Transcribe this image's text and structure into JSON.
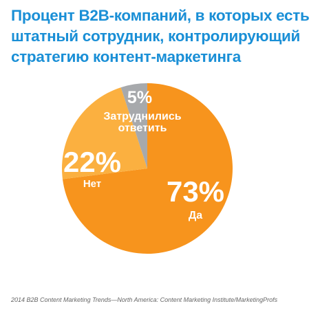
{
  "title_lines": [
    "Процент B2B-компаний, в которых есть",
    "штатный сотрудник, контролирующий",
    "стратегию контент-маркетинга"
  ],
  "chart_data": {
    "type": "pie",
    "title": "Процент B2B-компаний, в которых есть штатный сотрудник, контролирующий стратегию контент-маркетинга",
    "slices": [
      {
        "label": "Да",
        "value": 73,
        "value_label": "73%",
        "color": "#f7941d"
      },
      {
        "label": "Нет",
        "value": 22,
        "value_label": "22%",
        "color": "#fbb040"
      },
      {
        "label": "Затруднились ответить",
        "value": 5,
        "value_label": "5%",
        "color": "#a7a9ac"
      }
    ]
  },
  "source": "2014 B2B Content Marketing Trends—North America: Content Marketing Institute/MarketingProfs"
}
